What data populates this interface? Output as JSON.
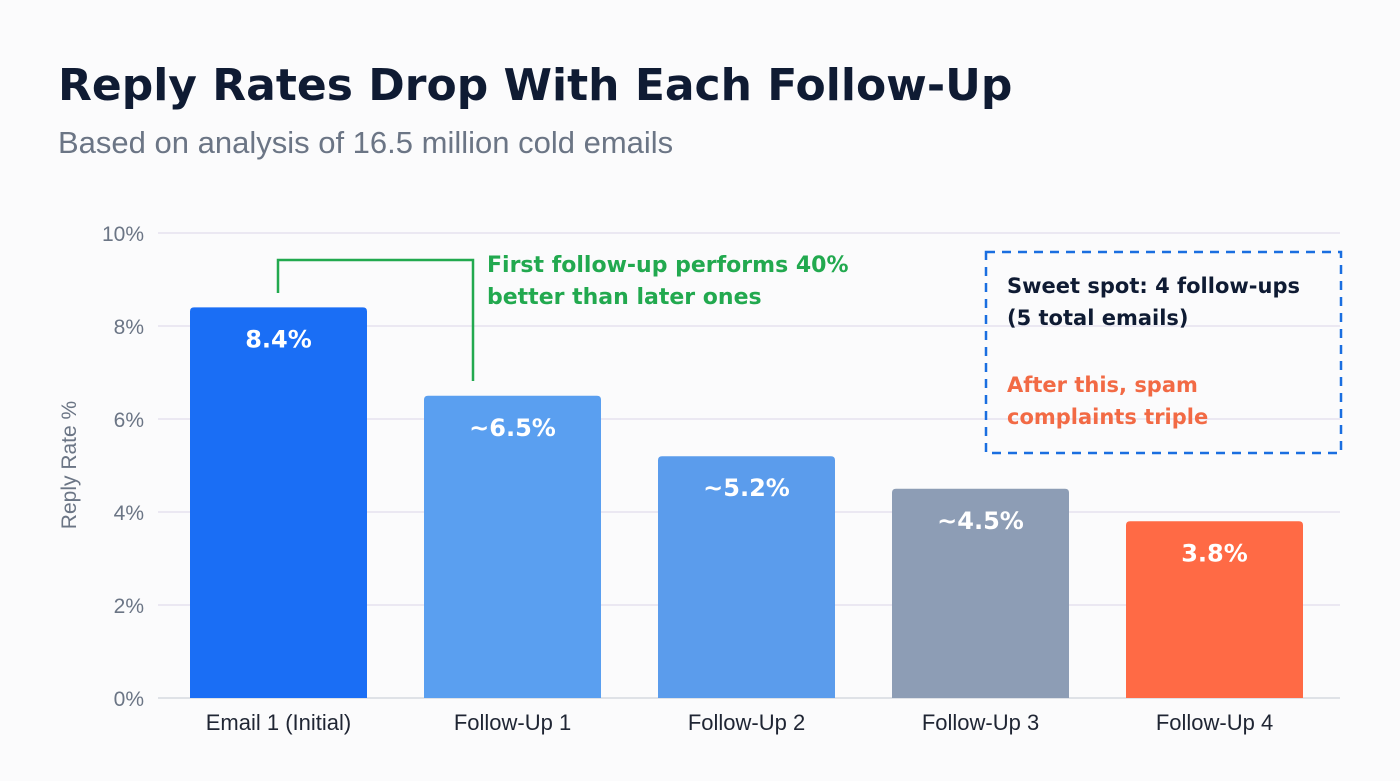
{
  "chart_data": {
    "type": "bar",
    "title": "Reply Rates Drop With Each Follow-Up",
    "subtitle": "Based on analysis of 16.5 million cold emails",
    "xlabel": "",
    "ylabel": "Reply Rate %",
    "ylim": [
      0,
      10
    ],
    "yticks": [
      0,
      2,
      4,
      6,
      8,
      10
    ],
    "ytick_labels": [
      "0%",
      "2%",
      "4%",
      "6%",
      "8%",
      "10%"
    ],
    "grid": true,
    "categories": [
      "Email 1 (Initial)",
      "Follow-Up 1",
      "Follow-Up 2",
      "Follow-Up 3",
      "Follow-Up 4"
    ],
    "values": [
      8.4,
      6.5,
      5.2,
      4.5,
      3.8
    ],
    "data_labels": [
      "8.4%",
      "~6.5%",
      "~5.2%",
      "~4.5%",
      "3.8%"
    ],
    "bar_colors": [
      "#1a6ef5",
      "#5a9ff0",
      "#5b9cec",
      "#8d9db5",
      "#ff6a45"
    ],
    "annotations": {
      "bracket": {
        "lines": [
          "First follow-up performs 40%",
          "better than later ones"
        ],
        "color": "#22a94f"
      },
      "callout": {
        "lines_dark": [
          "Sweet spot: 4 follow-ups",
          "(5 total emails)"
        ],
        "lines_orange": [
          "After this, spam",
          "complaints triple"
        ],
        "border_color": "#1a6ee0",
        "dark_color": "#0f1b33",
        "orange_color": "#f26a45"
      }
    }
  }
}
